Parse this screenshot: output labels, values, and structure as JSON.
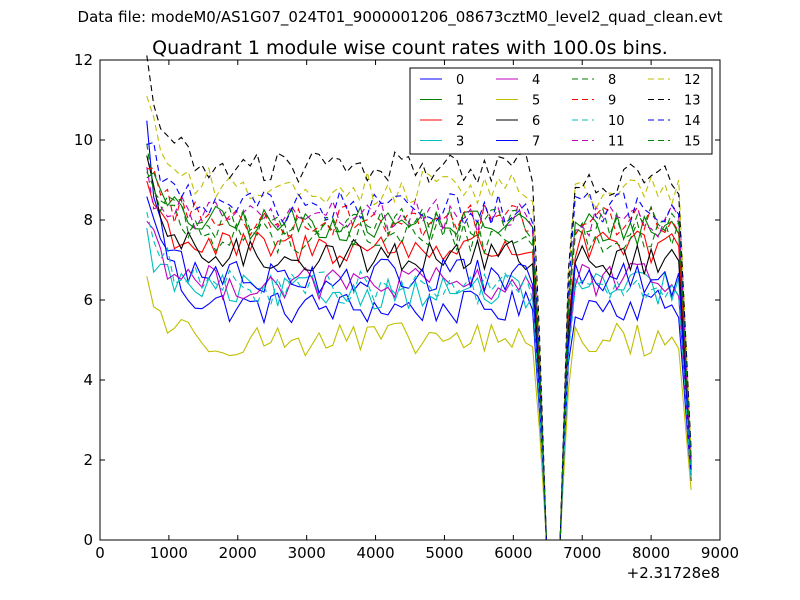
{
  "suptitle": "Data file: modeM0/AS1G07_024T01_9000001206_08673cztM0_level2_quad_clean.evt",
  "chart_data": {
    "type": "line",
    "title": "Quadrant 1 module wise count rates with 100.0s bins.",
    "xlabel": "",
    "ylabel": "",
    "x_offset_label": "+2.31728e8",
    "xlim": [
      0,
      9000
    ],
    "ylim": [
      0,
      12
    ],
    "xticks": [
      0,
      1000,
      2000,
      3000,
      4000,
      5000,
      6000,
      7000,
      8000,
      9000
    ],
    "yticks": [
      0,
      2,
      4,
      6,
      8,
      10,
      12
    ],
    "grid": false,
    "legend_position": "top-right",
    "legend_columns": 4,
    "segments": [
      {
        "x_start": 680,
        "x_end": 6280
      },
      {
        "x_start": 6480,
        "x_end": 8580
      }
    ],
    "gap_x": [
      6480,
      6680
    ],
    "series": [
      {
        "name": "0",
        "color": "#0000ff",
        "dash": "solid",
        "start": 10.3,
        "plateau": 5.8,
        "second": 5.9
      },
      {
        "name": "1",
        "color": "#008000",
        "dash": "solid",
        "start": 9.4,
        "plateau": 7.9,
        "second": 7.8
      },
      {
        "name": "2",
        "color": "#ff0000",
        "dash": "solid",
        "start": 9.0,
        "plateau": 7.3,
        "second": 7.3
      },
      {
        "name": "3",
        "color": "#00bfbf",
        "dash": "solid",
        "start": 7.5,
        "plateau": 6.2,
        "second": 6.3
      },
      {
        "name": "4",
        "color": "#bf00bf",
        "dash": "solid",
        "start": 8.2,
        "plateau": 6.4,
        "second": 6.5
      },
      {
        "name": "5",
        "color": "#bfbf00",
        "dash": "solid",
        "start": 6.5,
        "plateau": 5.0,
        "second": 5.0
      },
      {
        "name": "6",
        "color": "#000000",
        "dash": "solid",
        "start": 9.2,
        "plateau": 7.1,
        "second": 7.0
      },
      {
        "name": "7",
        "color": "#0000ff",
        "dash": "solid",
        "start": 8.7,
        "plateau": 6.6,
        "second": 6.5
      },
      {
        "name": "8",
        "color": "#008000",
        "dash": "dashed",
        "start": 9.7,
        "plateau": 7.6,
        "second": 7.6
      },
      {
        "name": "9",
        "color": "#ff0000",
        "dash": "dashed",
        "start": 9.6,
        "plateau": 8.0,
        "second": 8.0
      },
      {
        "name": "10",
        "color": "#00bfbf",
        "dash": "dashed",
        "start": 8.2,
        "plateau": 6.3,
        "second": 6.2
      },
      {
        "name": "11",
        "color": "#bf00bf",
        "dash": "dashed",
        "start": 9.0,
        "plateau": 8.1,
        "second": 8.0
      },
      {
        "name": "12",
        "color": "#bfbf00",
        "dash": "dashed",
        "start": 11.3,
        "plateau": 8.8,
        "second": 8.7
      },
      {
        "name": "13",
        "color": "#000000",
        "dash": "dashed",
        "start": 12.0,
        "plateau": 9.3,
        "second": 9.0
      },
      {
        "name": "14",
        "color": "#0000ff",
        "dash": "dashed",
        "start": 10.3,
        "plateau": 8.3,
        "second": 8.3
      },
      {
        "name": "15",
        "color": "#008000",
        "dash": "dashed",
        "start": 9.3,
        "plateau": 7.9,
        "second": 7.9
      }
    ]
  }
}
